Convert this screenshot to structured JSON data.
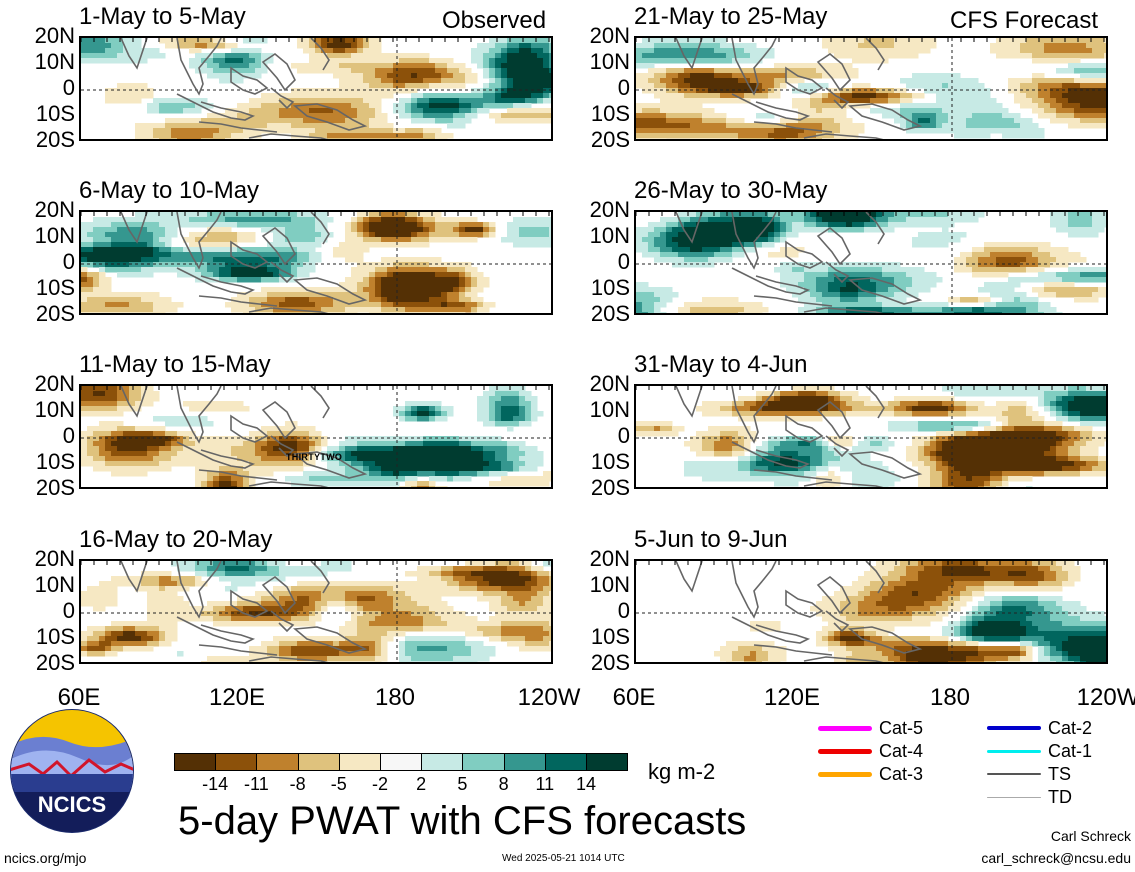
{
  "headings": {
    "observed": "Observed",
    "forecast": "CFS Forecast"
  },
  "panels": [
    {
      "label": "1-May to 5-May",
      "col": 0,
      "row": 0,
      "seed": 3
    },
    {
      "label": "6-May to 10-May",
      "col": 0,
      "row": 1,
      "seed": 7
    },
    {
      "label": "11-May to 15-May",
      "col": 0,
      "row": 2,
      "seed": 11
    },
    {
      "label": "16-May to 20-May",
      "col": 0,
      "row": 3,
      "seed": 17
    },
    {
      "label": "21-May to 25-May",
      "col": 1,
      "row": 0,
      "seed": 23
    },
    {
      "label": "26-May to 30-May",
      "col": 1,
      "row": 1,
      "seed": 29
    },
    {
      "label": "31-May to 4-Jun",
      "col": 1,
      "row": 2,
      "seed": 31
    },
    {
      "label": "5-Jun to 9-Jun",
      "col": 1,
      "row": 3,
      "seed": 37
    }
  ],
  "lat_labels": [
    "20N",
    "10N",
    "0",
    "10S",
    "20S"
  ],
  "lon_labels": [
    "60E",
    "120E",
    "180",
    "120W"
  ],
  "storm_label": "THIRTYTWO",
  "colorbar": {
    "colors": [
      "#543005",
      "#8c510a",
      "#bf812d",
      "#dfc27d",
      "#f6e8c3",
      "#f7f7f7",
      "#c7eae5",
      "#80cdc1",
      "#35978f",
      "#01665e",
      "#003c30"
    ],
    "ticks": [
      "-14",
      "-11",
      "-8",
      "-5",
      "-2",
      "2",
      "5",
      "8",
      "11",
      "14"
    ],
    "units": "kg m-2"
  },
  "title": "5-day PWAT with CFS forecasts",
  "legend": [
    {
      "label": "Cat-5",
      "color": "#ff00ff",
      "weight": 5
    },
    {
      "label": "Cat-4",
      "color": "#ee0000",
      "weight": 5
    },
    {
      "label": "Cat-3",
      "color": "#ffa500",
      "weight": 5
    },
    {
      "label": "Cat-2",
      "color": "#0000cc",
      "weight": 4
    },
    {
      "label": "Cat-1",
      "color": "#00eeee",
      "weight": 3
    },
    {
      "label": "TS",
      "color": "#555555",
      "weight": 2
    },
    {
      "label": "TD",
      "color": "#aaaaaa",
      "weight": 1
    }
  ],
  "logo": {
    "text": "NCICS"
  },
  "footer": {
    "url": "ncics.org/mjo",
    "timestamp": "Wed 2025-05-21 1014 UTC",
    "author": "Carl Schreck",
    "email": "carl_schreck@ncsu.edu"
  }
}
